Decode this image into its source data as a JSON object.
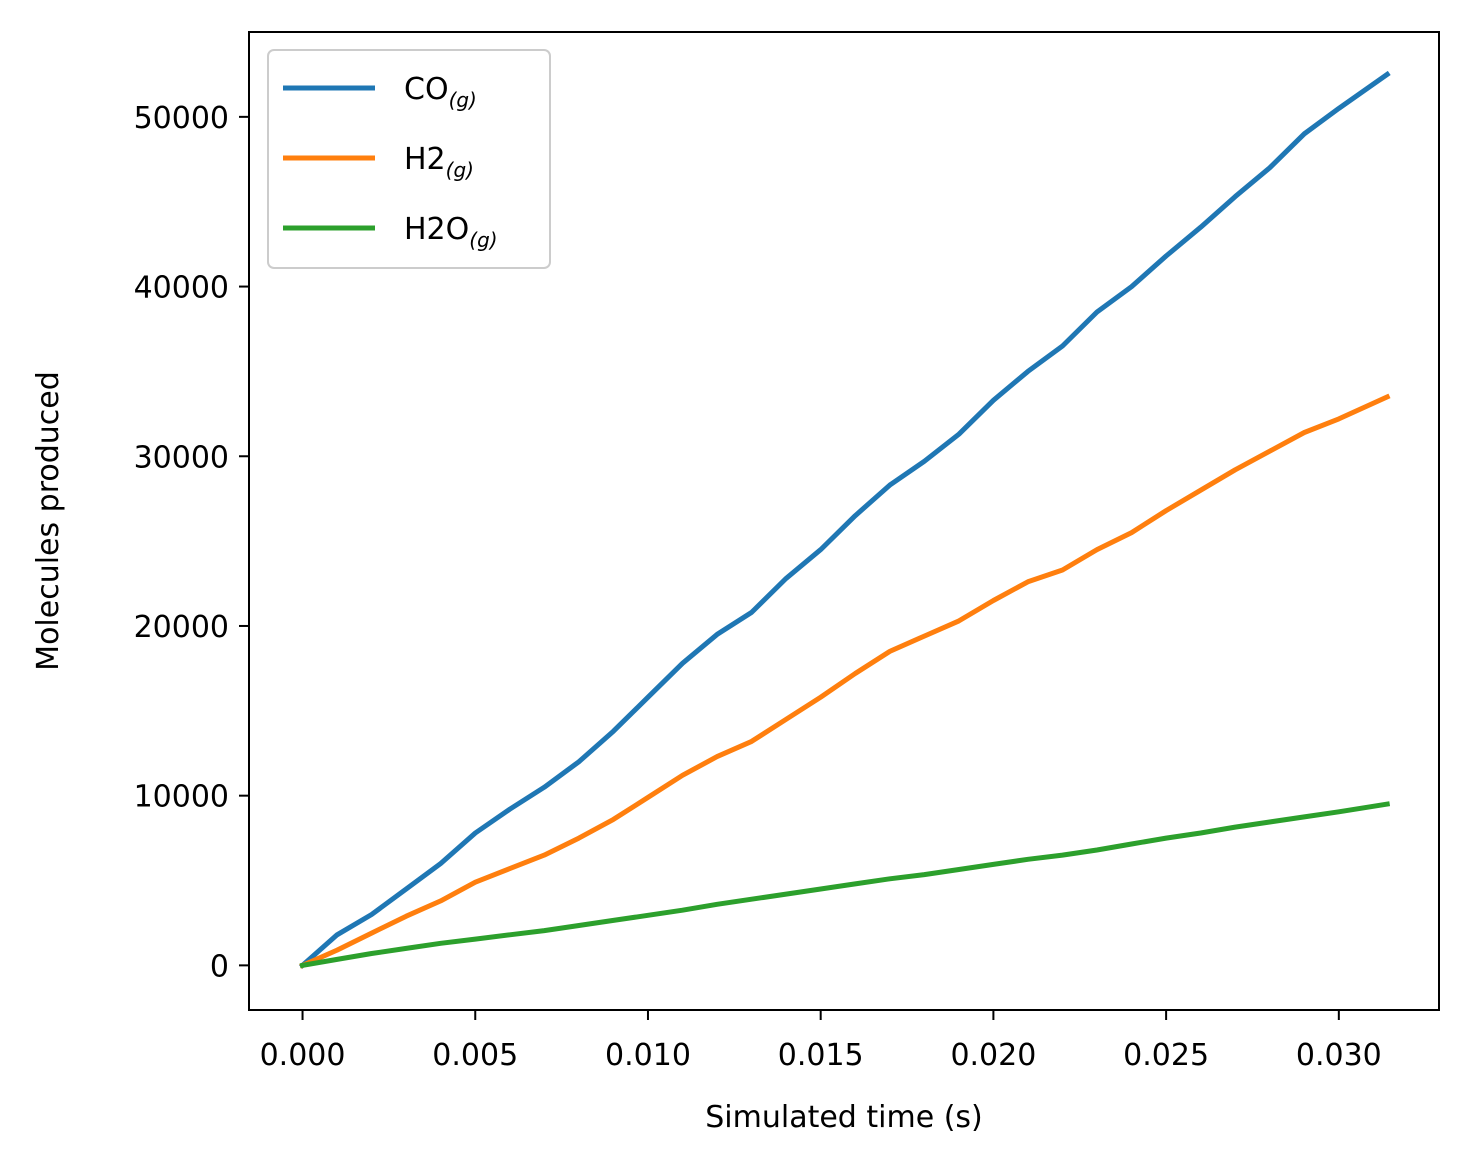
{
  "chart_data": {
    "type": "line",
    "xlabel": "Simulated time (s)",
    "ylabel": "Molecules produced",
    "xlim": [
      -0.00155,
      0.0329
    ],
    "ylim": [
      -2630,
      55000
    ],
    "x_ticks": [
      {
        "value": 0.0,
        "label": "0.000"
      },
      {
        "value": 0.005,
        "label": "0.005"
      },
      {
        "value": 0.01,
        "label": "0.010"
      },
      {
        "value": 0.015,
        "label": "0.015"
      },
      {
        "value": 0.02,
        "label": "0.020"
      },
      {
        "value": 0.025,
        "label": "0.025"
      },
      {
        "value": 0.03,
        "label": "0.030"
      }
    ],
    "y_ticks": [
      {
        "value": 0,
        "label": "0"
      },
      {
        "value": 10000,
        "label": "10000"
      },
      {
        "value": 20000,
        "label": "20000"
      },
      {
        "value": 30000,
        "label": "30000"
      },
      {
        "value": 40000,
        "label": "40000"
      },
      {
        "value": 50000,
        "label": "50000"
      }
    ],
    "grid": false,
    "legend_position": "top-left",
    "x": [
      0.0,
      0.001,
      0.002,
      0.003,
      0.004,
      0.005,
      0.006,
      0.007,
      0.008,
      0.009,
      0.01,
      0.011,
      0.012,
      0.013,
      0.014,
      0.015,
      0.016,
      0.017,
      0.018,
      0.019,
      0.02,
      0.021,
      0.022,
      0.023,
      0.024,
      0.025,
      0.026,
      0.027,
      0.028,
      0.029,
      0.03,
      0.0314
    ],
    "series": [
      {
        "name": "CO",
        "subscript": "(g)",
        "color": "#1f77b4",
        "values": [
          0,
          1800,
          3000,
          4500,
          6000,
          7800,
          9200,
          10500,
          12000,
          13800,
          15800,
          17800,
          19500,
          20800,
          22800,
          24500,
          26500,
          28300,
          29700,
          31300,
          33300,
          35000,
          36500,
          38500,
          40000,
          41800,
          43500,
          45300,
          47000,
          49000,
          50500,
          52500
        ]
      },
      {
        "name": "H2",
        "subscript": "(g)",
        "color": "#ff7f0e",
        "values": [
          0,
          900,
          1900,
          2900,
          3800,
          4900,
          5700,
          6500,
          7500,
          8600,
          9900,
          11200,
          12300,
          13200,
          14500,
          15800,
          17200,
          18500,
          19400,
          20300,
          21500,
          22600,
          23300,
          24500,
          25500,
          26800,
          28000,
          29200,
          30300,
          31400,
          32200,
          33500
        ]
      },
      {
        "name": "H2O",
        "subscript": "(g)",
        "color": "#2ca02c",
        "values": [
          0,
          350,
          700,
          1000,
          1300,
          1550,
          1800,
          2050,
          2350,
          2650,
          2950,
          3250,
          3600,
          3900,
          4200,
          4500,
          4800,
          5100,
          5350,
          5650,
          5950,
          6250,
          6500,
          6800,
          7150,
          7500,
          7800,
          8150,
          8450,
          8750,
          9050,
          9500
        ]
      }
    ]
  }
}
